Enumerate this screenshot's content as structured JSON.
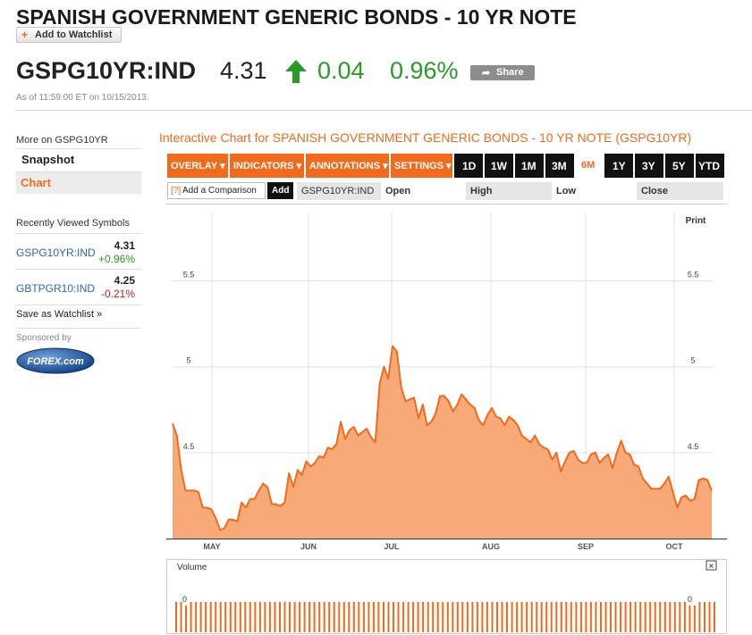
{
  "header": {
    "title": "SPANISH GOVERNMENT GENERIC BONDS - 10 YR NOTE",
    "watchlist_label": "Add to Watchlist",
    "watchlist_plus": "+",
    "ticker": "GSPG10YR:IND",
    "price": "4.31",
    "change": "0.04",
    "change_pct": "0.96%",
    "share_label": "Share",
    "as_of": "As of 11:59:00 ET on 10/15/2013.",
    "up_color": "#2a9a2a",
    "accent": "#f26a1b"
  },
  "sidebar": {
    "more_on": "More on GSPG10YR",
    "nav": [
      {
        "label": "Snapshot",
        "active": false
      },
      {
        "label": "Chart",
        "active": true
      }
    ],
    "recent_title": "Recently Viewed Symbols",
    "recent": [
      {
        "symbol": "GSPG10YR:IND",
        "value": "4.31",
        "change": "+0.96%",
        "direction": "up"
      },
      {
        "symbol": "GBTPGR10:IND",
        "value": "4.25",
        "change": "-0.21%",
        "direction": "down"
      }
    ],
    "save_watchlist": "Save as Watchlist »",
    "sponsored_by": "Sponsored by",
    "sponsor_logo": "FOREX.com"
  },
  "chart_panel": {
    "title": "Interactive Chart for SPANISH GOVERNMENT GENERIC BONDS - 10 YR NOTE (GSPG10YR)",
    "menus": [
      "OVERLAY ▾",
      "INDICATORS ▾",
      "ANNOTATIONS ▾",
      "SETTINGS ▾"
    ],
    "ranges": [
      "1D",
      "1W",
      "1M",
      "3M",
      "6M",
      "1Y",
      "3Y",
      "5Y",
      "YTD"
    ],
    "active_range": "6M",
    "compare_hint": "[?]",
    "compare_label": "Add a Comparison",
    "add_label": "Add",
    "symbol_label": "GSPG10YR:IND",
    "open_label": "Open",
    "high_label": "High",
    "low_label": "Low",
    "close_label": "Close",
    "print_label": "Print",
    "volume_label": "Volume",
    "volume_close": "✕"
  },
  "chart_data": {
    "type": "area",
    "x_labels": [
      "MAY",
      "JUN",
      "JUL",
      "AUG",
      "SEP",
      "OCT"
    ],
    "y_ticks": [
      "5.5",
      "5",
      "4.5"
    ],
    "ylim": [
      4.0,
      5.95
    ],
    "grid": true,
    "color": "#f26a1b",
    "fill": "#f8a978",
    "series": [
      {
        "values": [
          4.67,
          4.6,
          4.4,
          4.28,
          4.28,
          4.28,
          4.27,
          4.18,
          4.18,
          4.17,
          4.12,
          4.05,
          4.06,
          4.11,
          4.11,
          4.1,
          4.21,
          4.18,
          4.23,
          4.23,
          4.28,
          4.32,
          4.3,
          4.2,
          4.2,
          4.19,
          4.21,
          4.38,
          4.3,
          4.4,
          4.37,
          4.45,
          4.42,
          4.44,
          4.48,
          4.47,
          4.53,
          4.52,
          4.55,
          4.68,
          4.58,
          4.63,
          4.65,
          4.6,
          4.62,
          4.64,
          4.59,
          4.56,
          4.9,
          5.0,
          4.93,
          5.12,
          5.09,
          4.88,
          4.8,
          4.81,
          4.82,
          4.7,
          4.78,
          4.66,
          4.68,
          4.73,
          4.83,
          4.83,
          4.8,
          4.74,
          4.78,
          4.84,
          4.81,
          4.78,
          4.76,
          4.69,
          4.66,
          4.72,
          4.76,
          4.71,
          4.7,
          4.66,
          4.71,
          4.69,
          4.66,
          4.6,
          4.58,
          4.56,
          4.6,
          4.55,
          4.53,
          4.52,
          4.46,
          4.5,
          4.39,
          4.45,
          4.5,
          4.51,
          4.46,
          4.44,
          4.44,
          4.49,
          4.5,
          4.44,
          4.47,
          4.49,
          4.41,
          4.5,
          4.57,
          4.5,
          4.49,
          4.43,
          4.42,
          4.35,
          4.32,
          4.29,
          4.29,
          4.29,
          4.32,
          4.36,
          4.27,
          4.18,
          4.24,
          4.25,
          4.22,
          4.23,
          4.34,
          4.35,
          4.34,
          4.28
        ]
      }
    ],
    "volume": {
      "axis_label": "0",
      "bar_count": 110
    }
  }
}
